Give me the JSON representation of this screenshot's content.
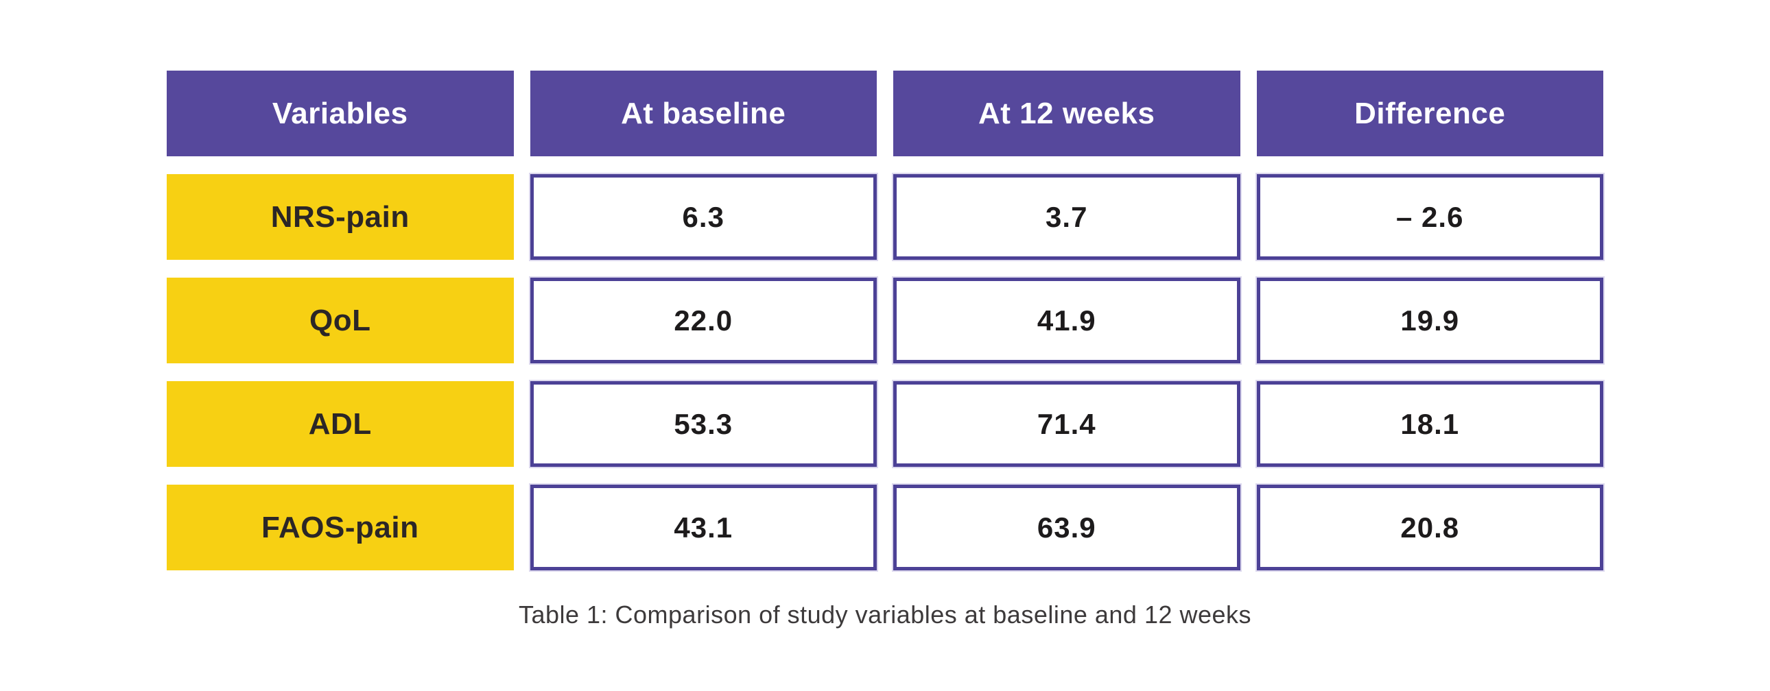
{
  "colors": {
    "header_bg": "#56489c",
    "label_bg": "#f7d013",
    "cell_border": "#4c4196",
    "cell_border_halo": "#dcd8ee",
    "header_text": "#ffffff",
    "label_text": "#2b2627",
    "value_text": "#1d1b1c",
    "caption_text": "#3d3a3b",
    "page_bg": "#ffffff"
  },
  "table": {
    "headers": [
      "Variables",
      "At baseline",
      "At 12 weeks",
      "Difference"
    ],
    "rows": [
      {
        "label": "NRS-pain",
        "baseline": "6.3",
        "week12": "3.7",
        "difference": "– 2.6"
      },
      {
        "label": "QoL",
        "baseline": "22.0",
        "week12": "41.9",
        "difference": "19.9"
      },
      {
        "label": "ADL",
        "baseline": "53.3",
        "week12": "71.4",
        "difference": "18.1"
      },
      {
        "label": "FAOS-pain",
        "baseline": "43.1",
        "week12": "63.9",
        "difference": "20.8"
      }
    ],
    "caption": "Table 1: Comparison of study variables at baseline and 12 weeks"
  },
  "chart_data": {
    "type": "table",
    "title": "Table 1: Comparison of study variables at baseline and 12 weeks",
    "columns": [
      "Variables",
      "At baseline",
      "At 12 weeks",
      "Difference"
    ],
    "rows": [
      [
        "NRS-pain",
        6.3,
        3.7,
        -2.6
      ],
      [
        "QoL",
        22.0,
        41.9,
        19.9
      ],
      [
        "ADL",
        53.3,
        71.4,
        18.1
      ],
      [
        "FAOS-pain",
        43.1,
        63.9,
        20.8
      ]
    ]
  }
}
